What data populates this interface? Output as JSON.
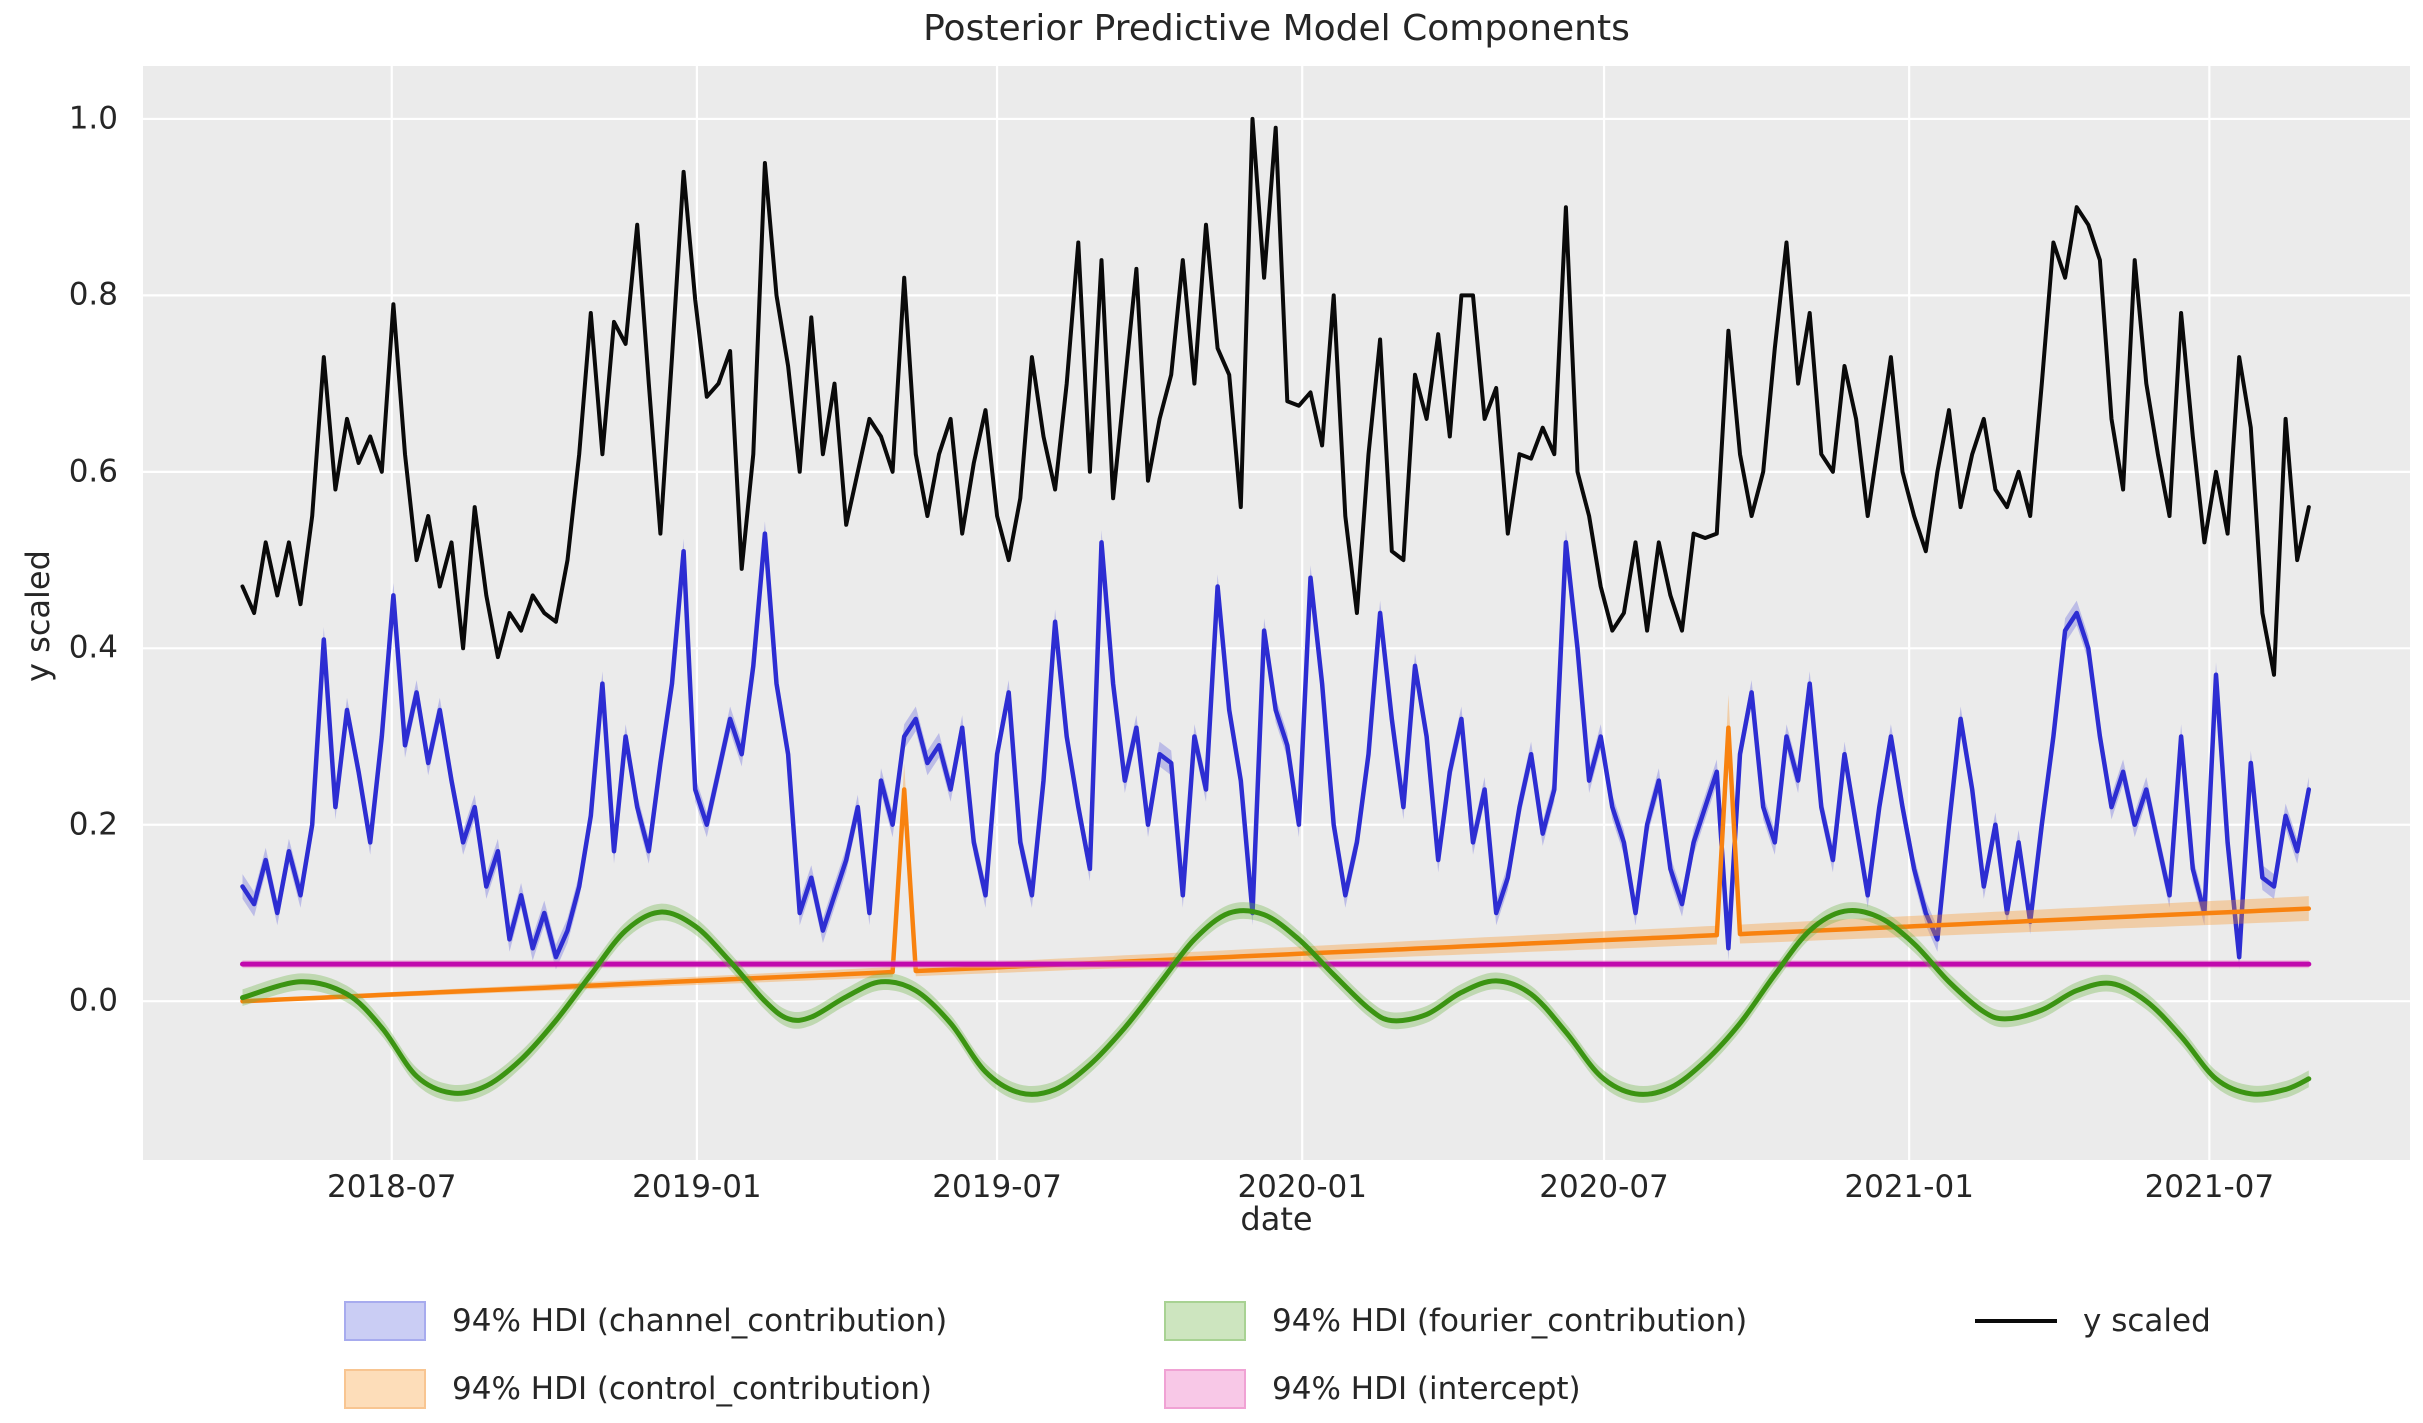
{
  "figure": {
    "title": "Posterior Predictive Model Components",
    "xlabel": "date",
    "ylabel": "y scaled",
    "background_color": "#ffffff",
    "plot_background_color": "#ebebeb",
    "grid_color": "#ffffff",
    "text_color": "#262626"
  },
  "legend": {
    "position": "below-axes",
    "entries": [
      {
        "label": "94% HDI (channel_contribution)",
        "swatch": "patch",
        "fill": "#cacdf4",
        "edge": "#a7abee",
        "col": 0,
        "row": 0
      },
      {
        "label": "94% HDI (control_contribution)",
        "swatch": "patch",
        "fill": "#fdddb9",
        "edge": "#f8c591",
        "col": 0,
        "row": 1
      },
      {
        "label": "94% HDI (fourier_contribution)",
        "swatch": "patch",
        "fill": "#cde5bf",
        "edge": "#a8d293",
        "col": 1,
        "row": 0
      },
      {
        "label": "94% HDI (intercept)",
        "swatch": "patch",
        "fill": "#f8c8e7",
        "edge": "#f0a2d4",
        "col": 1,
        "row": 1
      },
      {
        "label": "y scaled",
        "swatch": "line",
        "line_color": "#0a0a0a",
        "col": 2,
        "row": 0
      }
    ]
  },
  "chart_data": {
    "type": "line",
    "title": "Posterior Predictive Model Components",
    "xlabel": "date",
    "ylabel": "y scaled",
    "grid": true,
    "legend_position": "bottom",
    "xlim": [
      "2018-02-01",
      "2021-10-30"
    ],
    "ylim": [
      -0.18,
      1.06
    ],
    "x_ticks": [
      {
        "label": "2018-07",
        "date": "2018-07-01"
      },
      {
        "label": "2019-01",
        "date": "2019-01-01"
      },
      {
        "label": "2019-07",
        "date": "2019-07-01"
      },
      {
        "label": "2020-01",
        "date": "2020-01-01"
      },
      {
        "label": "2020-07",
        "date": "2020-07-01"
      },
      {
        "label": "2021-01",
        "date": "2021-01-01"
      },
      {
        "label": "2021-07",
        "date": "2021-07-01"
      }
    ],
    "y_ticks": [
      {
        "label": "0.0",
        "value": 0.0
      },
      {
        "label": "0.2",
        "value": 0.2
      },
      {
        "label": "0.4",
        "value": 0.4
      },
      {
        "label": "0.6",
        "value": 0.6
      },
      {
        "label": "0.8",
        "value": 0.8
      },
      {
        "label": "1.0",
        "value": 1.0
      }
    ],
    "x_start": "2018-04-02",
    "x_interval_days": 7,
    "n_points": 179,
    "series": [
      {
        "name": "94% HDI (channel_contribution)",
        "style": "line+band",
        "color": "#2d2dd2",
        "line_width": 4.5,
        "band_color": "rgba(80,80,220,0.30)",
        "band_half": 0.014,
        "values": [
          0.13,
          0.11,
          0.16,
          0.1,
          0.17,
          0.12,
          0.2,
          0.41,
          0.22,
          0.33,
          0.26,
          0.18,
          0.3,
          0.46,
          0.29,
          0.35,
          0.27,
          0.33,
          0.25,
          0.18,
          0.22,
          0.13,
          0.17,
          0.07,
          0.12,
          0.06,
          0.1,
          0.05,
          0.08,
          0.13,
          0.21,
          0.36,
          0.17,
          0.3,
          0.22,
          0.17,
          0.27,
          0.36,
          0.51,
          0.24,
          0.2,
          0.26,
          0.32,
          0.28,
          0.38,
          0.53,
          0.36,
          0.28,
          0.1,
          0.14,
          0.08,
          0.12,
          0.16,
          0.22,
          0.1,
          0.25,
          0.2,
          0.3,
          0.32,
          0.27,
          0.29,
          0.24,
          0.31,
          0.18,
          0.12,
          0.28,
          0.35,
          0.18,
          0.12,
          0.25,
          0.43,
          0.3,
          0.22,
          0.15,
          0.52,
          0.36,
          0.25,
          0.31,
          0.2,
          0.28,
          0.27,
          0.12,
          0.3,
          0.24,
          0.47,
          0.33,
          0.25,
          0.1,
          0.42,
          0.33,
          0.29,
          0.2,
          0.48,
          0.36,
          0.2,
          0.12,
          0.18,
          0.28,
          0.44,
          0.32,
          0.22,
          0.38,
          0.3,
          0.16,
          0.26,
          0.32,
          0.18,
          0.24,
          0.1,
          0.14,
          0.22,
          0.28,
          0.19,
          0.24,
          0.52,
          0.4,
          0.25,
          0.3,
          0.22,
          0.18,
          0.1,
          0.2,
          0.25,
          0.15,
          0.11,
          0.18,
          0.22,
          0.26,
          0.06,
          0.28,
          0.35,
          0.22,
          0.18,
          0.3,
          0.25,
          0.36,
          0.22,
          0.16,
          0.28,
          0.2,
          0.12,
          0.22,
          0.3,
          0.22,
          0.15,
          0.1,
          0.07,
          0.2,
          0.32,
          0.24,
          0.13,
          0.2,
          0.1,
          0.18,
          0.09,
          0.2,
          0.3,
          0.42,
          0.44,
          0.4,
          0.3,
          0.22,
          0.26,
          0.2,
          0.24,
          0.18,
          0.12,
          0.3,
          0.15,
          0.1,
          0.37,
          0.18,
          0.05,
          0.27,
          0.14,
          0.13,
          0.21,
          0.17,
          0.24
        ]
      },
      {
        "name": "94% HDI (control_contribution)",
        "style": "line+band",
        "color": "#f8820f",
        "line_width": 4.5,
        "band_color": "rgba(248,150,40,0.35)",
        "band_rule": "half = 0.002 + 0.115 * value",
        "trend_start": 0.0,
        "trend_end": 0.105,
        "spikes": [
          {
            "index": 57,
            "date": "2019-05-06",
            "value": 0.24
          },
          {
            "index": 128,
            "date": "2020-09-14",
            "value": 0.31
          }
        ]
      },
      {
        "name": "94% HDI (fourier_contribution)",
        "style": "smooth-line+band",
        "color": "#3b9412",
        "line_width": 5,
        "band_color": "rgba(110,180,70,0.35)",
        "band_half": 0.0095,
        "keypoints": [
          [
            "2018-04-02",
            0.004
          ],
          [
            "2018-05-07",
            0.022
          ],
          [
            "2018-06-04",
            0.008
          ],
          [
            "2018-06-25",
            -0.03
          ],
          [
            "2018-07-16",
            -0.085
          ],
          [
            "2018-08-06",
            -0.104
          ],
          [
            "2018-08-27",
            -0.096
          ],
          [
            "2018-09-17",
            -0.066
          ],
          [
            "2018-10-08",
            -0.022
          ],
          [
            "2018-10-29",
            0.03
          ],
          [
            "2018-11-19",
            0.08
          ],
          [
            "2018-12-10",
            0.101
          ],
          [
            "2018-12-31",
            0.085
          ],
          [
            "2019-01-21",
            0.045
          ],
          [
            "2019-02-11",
            0.0
          ],
          [
            "2019-02-25",
            -0.02
          ],
          [
            "2019-03-11",
            -0.018
          ],
          [
            "2019-04-01",
            0.005
          ],
          [
            "2019-04-22",
            0.022
          ],
          [
            "2019-05-13",
            0.012
          ],
          [
            "2019-06-03",
            -0.025
          ],
          [
            "2019-06-24",
            -0.08
          ],
          [
            "2019-07-15",
            -0.104
          ],
          [
            "2019-08-05",
            -0.1
          ],
          [
            "2019-08-26",
            -0.072
          ],
          [
            "2019-09-16",
            -0.03
          ],
          [
            "2019-10-07",
            0.02
          ],
          [
            "2019-10-28",
            0.07
          ],
          [
            "2019-11-18",
            0.1
          ],
          [
            "2019-12-09",
            0.098
          ],
          [
            "2019-12-30",
            0.07
          ],
          [
            "2020-01-20",
            0.03
          ],
          [
            "2020-02-10",
            -0.008
          ],
          [
            "2020-02-24",
            -0.022
          ],
          [
            "2020-03-16",
            -0.015
          ],
          [
            "2020-04-06",
            0.01
          ],
          [
            "2020-04-27",
            0.023
          ],
          [
            "2020-05-18",
            0.008
          ],
          [
            "2020-06-08",
            -0.035
          ],
          [
            "2020-06-29",
            -0.085
          ],
          [
            "2020-07-20",
            -0.105
          ],
          [
            "2020-08-10",
            -0.098
          ],
          [
            "2020-08-31",
            -0.068
          ],
          [
            "2020-09-21",
            -0.025
          ],
          [
            "2020-10-12",
            0.03
          ],
          [
            "2020-11-02",
            0.08
          ],
          [
            "2020-11-23",
            0.102
          ],
          [
            "2020-12-14",
            0.095
          ],
          [
            "2021-01-04",
            0.065
          ],
          [
            "2021-01-25",
            0.022
          ],
          [
            "2021-02-15",
            -0.012
          ],
          [
            "2021-03-01",
            -0.02
          ],
          [
            "2021-03-22",
            -0.01
          ],
          [
            "2021-04-12",
            0.012
          ],
          [
            "2021-05-03",
            0.02
          ],
          [
            "2021-05-24",
            0.0
          ],
          [
            "2021-06-14",
            -0.04
          ],
          [
            "2021-07-05",
            -0.088
          ],
          [
            "2021-07-26",
            -0.105
          ],
          [
            "2021-08-16",
            -0.1
          ],
          [
            "2021-08-30",
            -0.088
          ]
        ]
      },
      {
        "name": "94% HDI (intercept)",
        "style": "line+band",
        "color": "#c109ad",
        "line_width": 5,
        "band_color": "rgba(240,130,200,0.45)",
        "band_half": 0.0045,
        "constant": 0.042
      },
      {
        "name": "y scaled",
        "style": "line",
        "color": "#0a0a0a",
        "line_width": 4,
        "values": [
          0.47,
          0.44,
          0.52,
          0.46,
          0.52,
          0.45,
          0.55,
          0.73,
          0.58,
          0.66,
          0.61,
          0.64,
          0.6,
          0.79,
          0.62,
          0.5,
          0.55,
          0.47,
          0.52,
          0.4,
          0.56,
          0.46,
          0.39,
          0.44,
          0.42,
          0.46,
          0.44,
          0.43,
          0.5,
          0.62,
          0.78,
          0.62,
          0.77,
          0.745,
          0.88,
          0.7,
          0.53,
          0.73,
          0.94,
          0.795,
          0.685,
          0.7,
          0.737,
          0.49,
          0.62,
          0.95,
          0.8,
          0.72,
          0.6,
          0.775,
          0.62,
          0.7,
          0.54,
          0.6,
          0.66,
          0.64,
          0.6,
          0.82,
          0.62,
          0.55,
          0.62,
          0.66,
          0.53,
          0.61,
          0.67,
          0.55,
          0.5,
          0.57,
          0.73,
          0.64,
          0.58,
          0.7,
          0.86,
          0.6,
          0.84,
          0.57,
          0.7,
          0.83,
          0.59,
          0.66,
          0.71,
          0.84,
          0.7,
          0.88,
          0.74,
          0.71,
          0.56,
          1.0,
          0.82,
          0.99,
          0.68,
          0.675,
          0.69,
          0.63,
          0.8,
          0.55,
          0.44,
          0.62,
          0.75,
          0.51,
          0.5,
          0.71,
          0.66,
          0.756,
          0.64,
          0.8,
          0.8,
          0.66,
          0.695,
          0.53,
          0.62,
          0.615,
          0.65,
          0.62,
          0.9,
          0.6,
          0.55,
          0.47,
          0.42,
          0.44,
          0.52,
          0.42,
          0.52,
          0.46,
          0.42,
          0.53,
          0.525,
          0.53,
          0.76,
          0.62,
          0.55,
          0.6,
          0.74,
          0.86,
          0.7,
          0.78,
          0.62,
          0.6,
          0.72,
          0.66,
          0.55,
          0.64,
          0.73,
          0.6,
          0.55,
          0.51,
          0.6,
          0.67,
          0.56,
          0.62,
          0.66,
          0.58,
          0.56,
          0.6,
          0.55,
          0.7,
          0.86,
          0.82,
          0.9,
          0.88,
          0.84,
          0.66,
          0.58,
          0.84,
          0.7,
          0.62,
          0.55,
          0.78,
          0.64,
          0.52,
          0.6,
          0.53,
          0.73,
          0.65,
          0.44,
          0.37,
          0.66,
          0.5,
          0.56
        ]
      }
    ]
  }
}
